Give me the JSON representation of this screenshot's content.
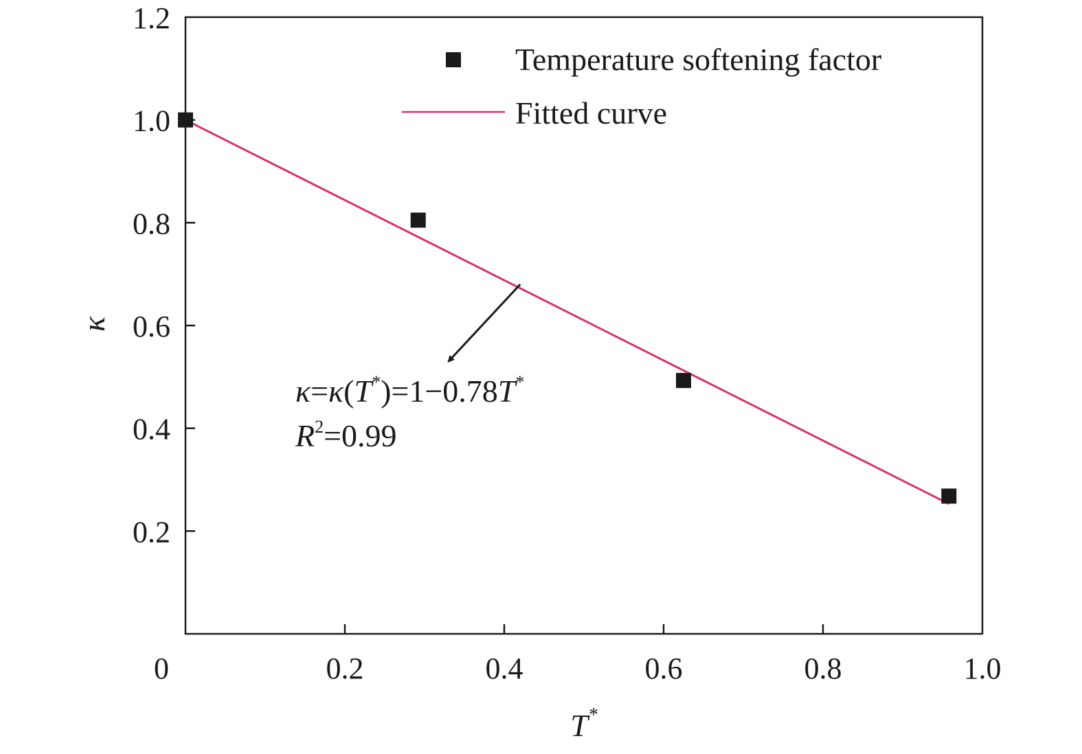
{
  "chart_data": {
    "type": "scatter",
    "title": "",
    "xlabel": "T",
    "xlabel_sup": "*",
    "ylabel": "κ",
    "xlim": [
      0,
      1.0
    ],
    "ylim": [
      0,
      1.2
    ],
    "x_ticks": [
      0,
      0.2,
      0.4,
      0.6,
      0.8,
      1.0
    ],
    "x_tick_labels": [
      "0",
      "0.2",
      "0.4",
      "0.6",
      "0.8",
      "1.0"
    ],
    "y_ticks": [
      0.2,
      0.4,
      0.6,
      0.8,
      1.0,
      1.2
    ],
    "y_tick_labels": [
      "0.2",
      "0.4",
      "0.6",
      "0.8",
      "1.0",
      "1.2"
    ],
    "grid": false,
    "legend_position": "top-right",
    "series": [
      {
        "name": "Temperature softening factor",
        "kind": "scatter",
        "marker": "square",
        "color": "#1a1a1a",
        "x": [
          0,
          0.292,
          0.625,
          0.958
        ],
        "y": [
          1.0,
          0.805,
          0.493,
          0.268
        ]
      },
      {
        "name": "Fitted curve",
        "kind": "line",
        "color": "#d6336c",
        "x": [
          0,
          0.958
        ],
        "y": [
          1.0,
          0.2528
        ]
      }
    ],
    "annotation": {
      "equation": {
        "k1": "κ",
        "eq1": "=",
        "k2": "κ",
        "open": "(",
        "T1": "T",
        "sup1": "*",
        "close": ")=1−0.78",
        "T2": "T",
        "sup2": "*"
      },
      "r2": {
        "R": "R",
        "sup": "2",
        "rest": "=0.99"
      },
      "arrow_from": [
        0.42,
        0.68
      ],
      "arrow_to": [
        0.33,
        0.53
      ]
    }
  }
}
